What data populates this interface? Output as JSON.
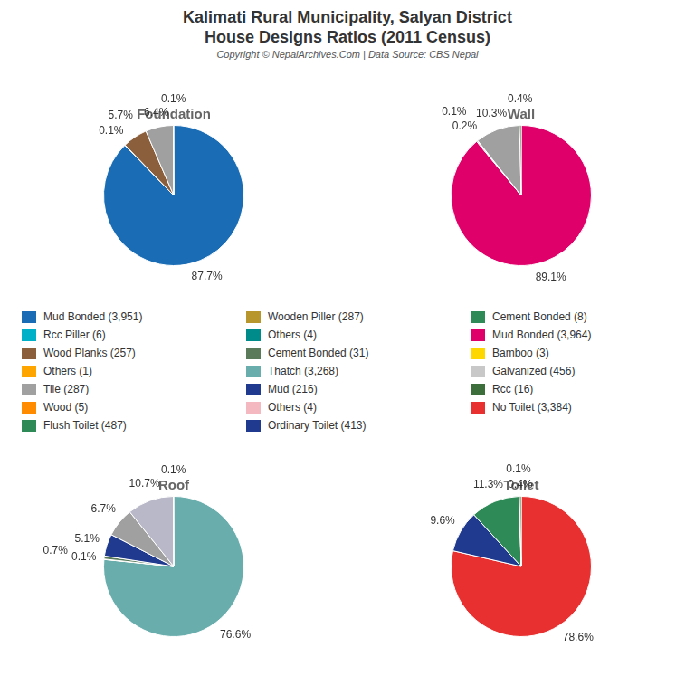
{
  "title": "Kalimati Rural Municipality, Salyan District",
  "subtitle": "House Designs Ratios (2011 Census)",
  "annotations": [
    "Copyright © NepalArchives.Com | Data Source: CBS Nepal"
  ],
  "legend_items": [
    {
      "name": "Mud Bonded (3,951)",
      "color": "#1a6db5"
    },
    {
      "name": "Rcc Piller (6)",
      "color": "#00b0c8"
    },
    {
      "name": "Wood Planks (257)",
      "color": "#8B5E3C"
    },
    {
      "name": "Others (1)",
      "color": "#FFA500"
    },
    {
      "name": "Tile (287)",
      "color": "#a0a0a0"
    },
    {
      "name": "Wood (5)",
      "color": "#FF8C00"
    },
    {
      "name": "Flush Toilet (487)",
      "color": "#2e8b57"
    },
    {
      "name": "Wooden Piller (287)",
      "color": "#b8962e"
    },
    {
      "name": "Others (4)",
      "color": "#008B8B"
    },
    {
      "name": "Cement Bonded (31)",
      "color": "#5a7a5a"
    },
    {
      "name": "Thatch (3,268)",
      "color": "#6aadad"
    },
    {
      "name": "Mud (216)",
      "color": "#1f3a8f"
    },
    {
      "name": "Others (4)",
      "color": "#f4b8c0"
    },
    {
      "name": "Ordinary Toilet (413)",
      "color": "#1f3a8f"
    },
    {
      "name": "Cement Bonded (8)",
      "color": "#2e8b57"
    },
    {
      "name": "Mud Bonded (3,964)",
      "color": "#e0006a"
    },
    {
      "name": "Bamboo (3)",
      "color": "#FFD700"
    },
    {
      "name": "Galvanized (456)",
      "color": "#c8c8c8"
    },
    {
      "name": "Rcc (16)",
      "color": "#3b6e3b"
    },
    {
      "name": "No Toilet (3,384)",
      "color": "#e83030"
    }
  ],
  "chart_data": [
    {
      "type": "pie",
      "title": "Foundation",
      "values": [
        87.7,
        0.1,
        5.7,
        0.0,
        6.4,
        0.1
      ],
      "value_labels": [
        "87.7%",
        "0.1%",
        "5.7%",
        null,
        "6.4%",
        "0.1%"
      ],
      "colors": [
        "#1a6db5",
        "#00b0c8",
        "#8B5E3C",
        "#FFA500",
        "#a0a0a0",
        "#FF8C00"
      ],
      "data_labels": true
    },
    {
      "type": "pie",
      "title": "Wall",
      "values": [
        89.1,
        0.2,
        0.1,
        10.3,
        0.4
      ],
      "value_labels": [
        "89.1%",
        "0.2%",
        "0.1%",
        "10.3%",
        "0.4%"
      ],
      "colors": [
        "#e0006a",
        "#8B5E3C",
        "#00b0c8",
        "#a0a0a0",
        "#3b6e3b"
      ],
      "data_labels": true
    },
    {
      "type": "pie",
      "title": "Roof",
      "values": [
        76.6,
        0.1,
        0.7,
        5.1,
        6.7,
        10.7,
        0.1
      ],
      "value_labels": [
        "76.6%",
        "0.1%",
        "0.7%",
        "5.1%",
        "6.7%",
        "10.7%",
        "0.1%"
      ],
      "colors": [
        "#6aadad",
        "#FFA500",
        "#5a7a5a",
        "#1f3a8f",
        "#a0a0a0",
        "#b8b8c8",
        "#f4b8c0"
      ],
      "data_labels": true
    },
    {
      "type": "pie",
      "title": "Toilet",
      "values": [
        78.6,
        9.6,
        11.3,
        0.1,
        0.4
      ],
      "value_labels": [
        "78.6%",
        "9.6%",
        "11.3%",
        "0.1%",
        "0.4%"
      ],
      "colors": [
        "#e83030",
        "#1f3a8f",
        "#2e8b57",
        "#f4b8c0",
        "#3b6e3b"
      ],
      "data_labels": true
    }
  ]
}
